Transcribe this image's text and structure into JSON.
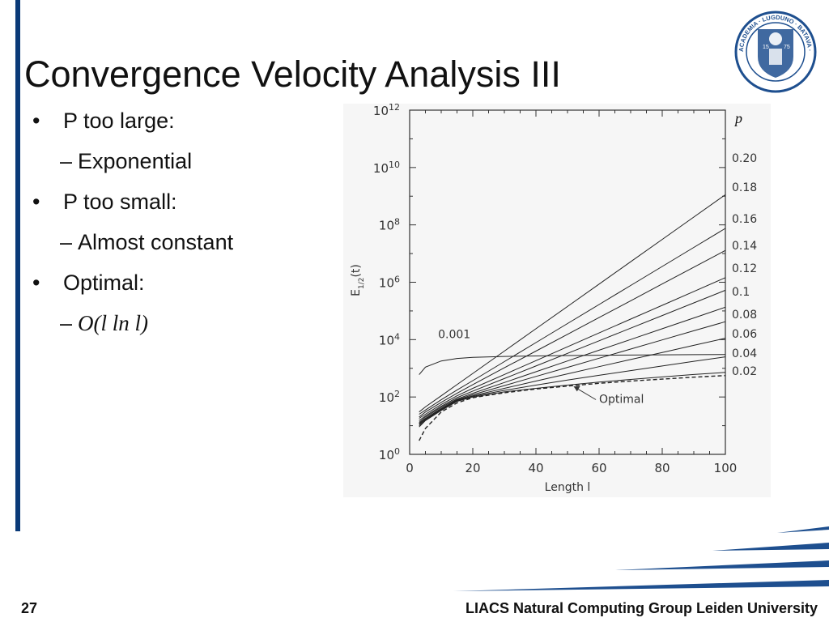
{
  "slide": {
    "title": "Convergence Velocity Analysis III",
    "bullets": [
      {
        "level": 1,
        "text": "P too large:"
      },
      {
        "level": 2,
        "text": "Exponential"
      },
      {
        "level": 1,
        "text": "P too small:"
      },
      {
        "level": 2,
        "text": "Almost constant"
      },
      {
        "level": 1,
        "text": "Optimal:"
      },
      {
        "level": 2,
        "text": "O(l ln l)",
        "style": "italic-serif"
      }
    ],
    "page_number": "27",
    "footer": "LIACS Natural Computing Group Leiden University",
    "seal_text": "ACADEMIA · LUGDUNO · BATAVA · PERFIDIUM",
    "seal_numbers": [
      "15",
      "75"
    ]
  },
  "colors": {
    "accent": "#0a3a78",
    "text": "#111111",
    "chart_line": "#222222"
  },
  "chart_data": {
    "type": "line",
    "xlabel": "Length l",
    "ylabel": "E_{1/2}(t)",
    "legend_title": "p",
    "x_ticks": [
      "0",
      "20",
      "40",
      "60",
      "80",
      "100"
    ],
    "y_ticks": [
      {
        "base": "10",
        "exp": "0"
      },
      {
        "base": "10",
        "exp": "2"
      },
      {
        "base": "10",
        "exp": "4"
      },
      {
        "base": "10",
        "exp": "6"
      },
      {
        "base": "10",
        "exp": "8"
      },
      {
        "base": "10",
        "exp": "10"
      },
      {
        "base": "10",
        "exp": "12"
      }
    ],
    "xlim": [
      0,
      100
    ],
    "ylim": [
      1,
      1000000000000.0
    ],
    "yscale": "log",
    "x": [
      3,
      5,
      10,
      15,
      20,
      30,
      40,
      50,
      60,
      70,
      80,
      90,
      100
    ],
    "series": [
      {
        "name": "0.20",
        "values": [
          30,
          45,
          110,
          270,
          660,
          3970,
          23900,
          143000,
          862000,
          5180000,
          31200000,
          187000000,
          1130000000
        ]
      },
      {
        "name": "0.18",
        "values": [
          25,
          35,
          80,
          175,
          370,
          1710,
          7880,
          36300,
          167000,
          772000,
          3560000,
          16400000,
          75600000
        ]
      },
      {
        "name": "0.16",
        "values": [
          20,
          30,
          65,
          135,
          270,
          1040,
          3980,
          15300,
          58900,
          226000,
          870000,
          3350000,
          12900000
        ]
      },
      {
        "name": "0.14",
        "values": [
          18,
          25,
          55,
          110,
          200,
          610,
          1850,
          5620,
          17100,
          51800,
          157000,
          478000,
          1450000
        ]
      },
      {
        "name": "0.12",
        "values": [
          15,
          22,
          48,
          95,
          160,
          440,
          1200,
          3310,
          9120,
          25100,
          69200,
          191000,
          525000
        ]
      },
      {
        "name": "0.1",
        "values": [
          13,
          20,
          44,
          85,
          135,
          320,
          760,
          1800,
          4270,
          10100,
          24000,
          56900,
          135000
        ]
      },
      {
        "name": "0.08",
        "values": [
          12,
          18,
          40,
          80,
          120,
          250,
          520,
          1080,
          2250,
          4680,
          9750,
          20300,
          42200
        ]
      },
      {
        "name": "0.06",
        "values": [
          11,
          17,
          38,
          76,
          110,
          200,
          360,
          640,
          1140,
          2020,
          3570,
          6310,
          11200
        ]
      },
      {
        "name": "0.04",
        "values": [
          10,
          16,
          36,
          72,
          105,
          170,
          260,
          390,
          570,
          830,
          1200,
          1750,
          2510
        ]
      },
      {
        "name": "0.02",
        "values": [
          9,
          15,
          34,
          70,
          100,
          150,
          200,
          260,
          330,
          410,
          500,
          610,
          720
        ]
      },
      {
        "name": "0.001",
        "values": [
          600,
          1100,
          1800,
          2200,
          2400,
          2600,
          2700,
          2780,
          2850,
          2900,
          2950,
          2990,
          3020
        ]
      },
      {
        "name": "Optimal",
        "dashed": true,
        "values": [
          3,
          8,
          30,
          62,
          95,
          140,
          190,
          240,
          300,
          360,
          420,
          490,
          560
        ]
      }
    ],
    "annotations": [
      {
        "text": "0.001",
        "target_series": "0.001"
      },
      {
        "text": "Optimal",
        "target_series": "Optimal"
      }
    ]
  }
}
